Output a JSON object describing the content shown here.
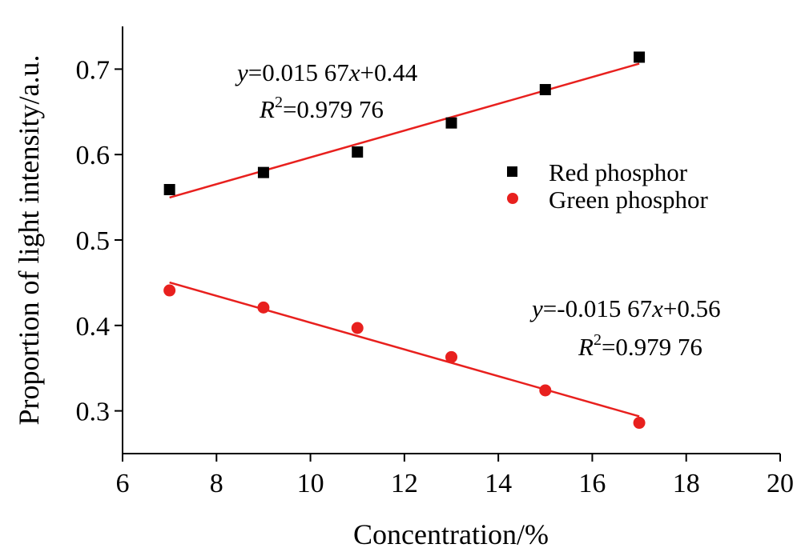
{
  "chart_data": {
    "type": "scatter",
    "xlabel": "Concentration/%",
    "ylabel": "Proportion of light intensity/a.u.",
    "xlim": [
      6,
      20
    ],
    "ylim": [
      0.25,
      0.75
    ],
    "xticks": [
      "6",
      "8",
      "10",
      "12",
      "14",
      "16",
      "18",
      "20"
    ],
    "yticks": [
      "0.3",
      "0.4",
      "0.5",
      "0.6",
      "0.7"
    ],
    "grid": false,
    "legend_position": "right",
    "series": [
      {
        "name": "Red phosphor",
        "marker": "square",
        "color": "#000000",
        "x": [
          7,
          9,
          11,
          13,
          15,
          17
        ],
        "y": [
          0.559,
          0.579,
          0.603,
          0.637,
          0.676,
          0.714
        ],
        "fit": {
          "slope": 0.01567,
          "intercept": 0.44,
          "color": "#e8201e"
        }
      },
      {
        "name": "Green phosphor",
        "marker": "circle",
        "color": "#e8201e",
        "x": [
          7,
          9,
          11,
          13,
          15,
          17
        ],
        "y": [
          0.441,
          0.421,
          0.397,
          0.363,
          0.324,
          0.286
        ],
        "fit": {
          "slope": -0.01567,
          "intercept": 0.56,
          "color": "#e8201e"
        }
      }
    ],
    "annotations": [
      {
        "y_prefix": "y",
        "eq_body": "=0.015 67",
        "x_var": "x",
        "eq_tail": "+0.44",
        "r2_prefix": "R",
        "r2_sup": "2",
        "r2_body": "=0.979 76"
      },
      {
        "y_prefix": "y",
        "eq_body": "=-0.015 67",
        "x_var": "x",
        "eq_tail": "+0.56",
        "r2_prefix": "R",
        "r2_sup": "2",
        "r2_body": "=0.979 76"
      }
    ]
  }
}
